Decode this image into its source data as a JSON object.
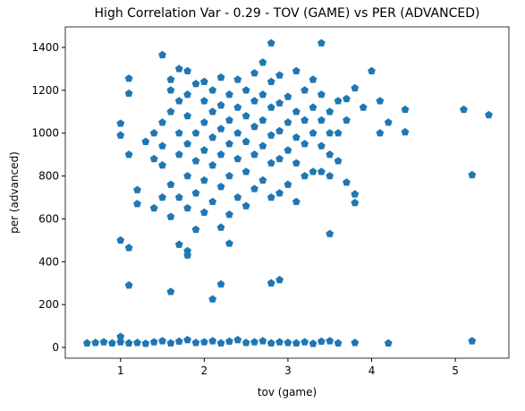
{
  "chart_data": {
    "type": "scatter",
    "title": "High Correlation Var - 0.29 - TOV (GAME) vs PER (ADVANCED)",
    "x_label": "tov (game)",
    "y_label": "per (advanced)",
    "color": "#1f77b4",
    "marker": "pentagon",
    "grid": false,
    "xlim": [
      0.34,
      5.64
    ],
    "ylim": [
      -50,
      1496
    ],
    "xticks": [
      1,
      2,
      3,
      4,
      5
    ],
    "yticks": [
      0,
      200,
      400,
      600,
      800,
      1000,
      1200,
      1400
    ],
    "x": [
      0.6,
      0.7,
      0.8,
      0.9,
      1.0,
      1.0,
      1.1,
      1.2,
      1.3,
      1.4,
      1.5,
      1.6,
      1.7,
      1.8,
      1.9,
      2.0,
      2.1,
      2.2,
      2.3,
      2.4,
      2.5,
      2.6,
      2.7,
      2.8,
      2.9,
      3.0,
      3.1,
      3.2,
      3.3,
      3.4,
      3.5,
      3.6,
      3.8,
      4.2,
      5.2,
      1.0,
      1.1,
      1.1,
      1.6,
      1.8,
      1.8,
      2.1,
      2.2,
      2.3,
      2.8,
      2.9,
      3.5,
      1.0,
      1.0,
      1.1,
      1.1,
      1.1,
      1.2,
      1.2,
      1.5,
      1.7,
      1.8,
      2.8,
      3.4,
      4.0,
      4.1,
      4.1,
      4.2,
      4.4,
      4.4,
      5.1,
      5.4,
      5.2,
      3.8,
      3.8,
      3.7,
      3.5,
      3.6,
      3.9,
      3.8,
      1.3,
      1.4,
      1.4,
      1.4,
      1.5,
      1.5,
      1.5,
      1.5,
      1.6,
      1.6,
      1.6,
      1.6,
      1.6,
      1.7,
      1.7,
      1.7,
      1.7,
      1.7,
      1.8,
      1.8,
      1.8,
      1.8,
      1.8,
      1.9,
      1.9,
      1.9,
      1.9,
      1.9,
      2.0,
      2.0,
      2.0,
      2.0,
      2.0,
      2.0,
      2.1,
      2.1,
      2.1,
      2.1,
      2.1,
      2.2,
      2.2,
      2.2,
      2.2,
      2.2,
      2.2,
      2.3,
      2.3,
      2.3,
      2.3,
      2.3,
      2.4,
      2.4,
      2.4,
      2.4,
      2.4,
      2.5,
      2.5,
      2.5,
      2.5,
      2.5,
      2.6,
      2.6,
      2.6,
      2.6,
      2.6,
      2.7,
      2.7,
      2.7,
      2.7,
      2.7,
      2.8,
      2.8,
      2.8,
      2.8,
      2.8,
      2.9,
      2.9,
      2.9,
      2.9,
      2.9,
      3.0,
      3.0,
      3.0,
      3.0,
      3.1,
      3.1,
      3.1,
      3.1,
      3.1,
      3.2,
      3.2,
      3.2,
      3.2,
      3.3,
      3.3,
      3.3,
      3.3,
      3.4,
      3.4,
      3.4,
      3.4,
      3.5,
      3.5,
      3.5,
      3.6,
      3.6,
      3.7,
      3.7
    ],
    "values": [
      20,
      22,
      25,
      20,
      50,
      25,
      20,
      22,
      18,
      25,
      30,
      20,
      28,
      35,
      22,
      25,
      30,
      20,
      28,
      35,
      22,
      25,
      30,
      20,
      25,
      22,
      20,
      25,
      18,
      28,
      30,
      20,
      22,
      20,
      30,
      500,
      465,
      290,
      260,
      430,
      450,
      225,
      295,
      485,
      300,
      315,
      530,
      1045,
      990,
      1255,
      1185,
      900,
      735,
      670,
      1365,
      1300,
      1290,
      1420,
      1420,
      1290,
      1150,
      1000,
      1050,
      1110,
      1005,
      1110,
      1085,
      805,
      715,
      675,
      770,
      800,
      870,
      1120,
      1210,
      960,
      650,
      880,
      1000,
      700,
      850,
      940,
      1050,
      610,
      760,
      1100,
      1200,
      1250,
      480,
      700,
      900,
      1000,
      1150,
      650,
      800,
      950,
      1080,
      1180,
      550,
      720,
      870,
      1000,
      1230,
      630,
      780,
      920,
      1050,
      1150,
      1240,
      680,
      850,
      980,
      1100,
      1200,
      560,
      750,
      900,
      1020,
      1130,
      1260,
      620,
      800,
      950,
      1060,
      1180,
      700,
      880,
      1000,
      1120,
      1250,
      660,
      820,
      960,
      1080,
      1200,
      740,
      900,
      1030,
      1150,
      1280,
      780,
      940,
      1060,
      1180,
      1330,
      700,
      860,
      990,
      1120,
      1240,
      720,
      880,
      1010,
      1140,
      1270,
      760,
      920,
      1050,
      1170,
      680,
      860,
      980,
      1100,
      1290,
      800,
      950,
      1060,
      1200,
      820,
      1000,
      1120,
      1250,
      820,
      940,
      1060,
      1180,
      900,
      1000,
      1100,
      1000,
      1150,
      1060,
      1160
    ]
  }
}
